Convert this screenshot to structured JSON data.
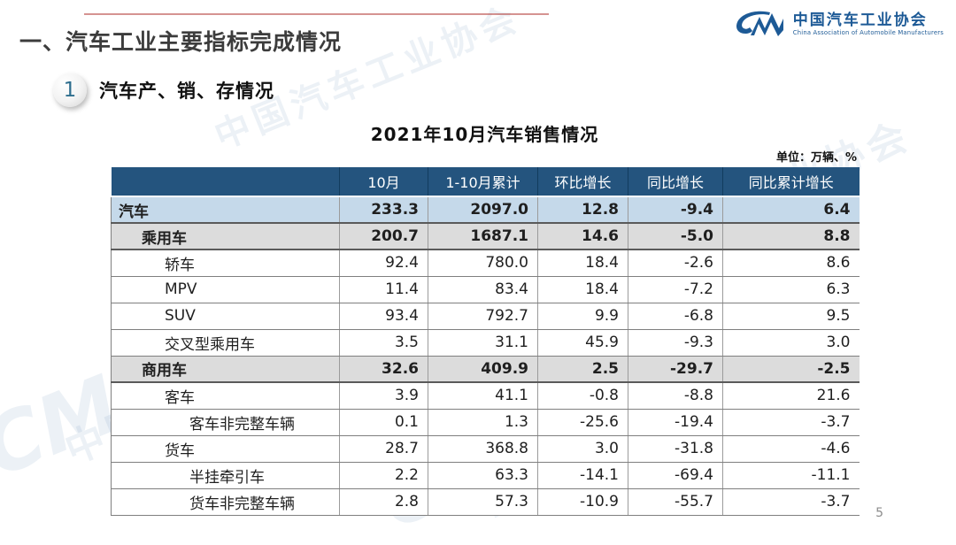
{
  "slide": {
    "section_title": "一、汽车工业主要指标完成情况",
    "badge_number": "1",
    "subsection_title": "汽车产、销、存情况",
    "page_number": "5"
  },
  "logo": {
    "name_zh": "中国汽车工业协会",
    "name_en": "China Association of Automobile Manufacturers",
    "brand_color": "#1d5a96"
  },
  "watermark_text": "中国汽车工业协会",
  "table": {
    "title": "2021年10月汽车销售情况",
    "unit_note": "单位：万辆、%",
    "columns": [
      "",
      "10月",
      "1-10月累计",
      "环比增长",
      "同比增长",
      "同比累计增长"
    ],
    "header_bg": "#24547e",
    "rows": [
      {
        "label": "汽车",
        "indent": 0,
        "style": "blue",
        "bold": true,
        "values": [
          "233.3",
          "2097.0",
          "12.8",
          "-9.4",
          "6.4"
        ]
      },
      {
        "label": "乘用车",
        "indent": 1,
        "style": "gray",
        "bold": true,
        "values": [
          "200.7",
          "1687.1",
          "14.6",
          "-5.0",
          "8.8"
        ]
      },
      {
        "label": "轿车",
        "indent": 2,
        "style": "",
        "bold": false,
        "values": [
          "92.4",
          "780.0",
          "18.4",
          "-2.6",
          "8.6"
        ]
      },
      {
        "label": "MPV",
        "indent": 2,
        "style": "",
        "bold": false,
        "values": [
          "11.4",
          "83.4",
          "18.4",
          "-7.2",
          "6.3"
        ]
      },
      {
        "label": "SUV",
        "indent": 2,
        "style": "",
        "bold": false,
        "values": [
          "93.4",
          "792.7",
          "9.9",
          "-6.8",
          "9.5"
        ]
      },
      {
        "label": "交叉型乘用车",
        "indent": 2,
        "style": "",
        "bold": false,
        "values": [
          "3.5",
          "31.1",
          "45.9",
          "-9.3",
          "3.0"
        ]
      },
      {
        "label": "商用车",
        "indent": 1,
        "style": "gray",
        "bold": true,
        "values": [
          "32.6",
          "409.9",
          "2.5",
          "-29.7",
          "-2.5"
        ]
      },
      {
        "label": "客车",
        "indent": 2,
        "style": "",
        "bold": false,
        "values": [
          "3.9",
          "41.1",
          "-0.8",
          "-8.8",
          "21.6"
        ]
      },
      {
        "label": "客车非完整车辆",
        "indent": 3,
        "style": "",
        "bold": false,
        "values": [
          "0.1",
          "1.3",
          "-25.6",
          "-19.4",
          "-3.7"
        ]
      },
      {
        "label": "货车",
        "indent": 2,
        "style": "",
        "bold": false,
        "values": [
          "28.7",
          "368.8",
          "3.0",
          "-31.8",
          "-4.6"
        ]
      },
      {
        "label": "半挂牵引车",
        "indent": 3,
        "style": "",
        "bold": false,
        "values": [
          "2.2",
          "63.3",
          "-14.1",
          "-69.4",
          "-11.1"
        ]
      },
      {
        "label": "货车非完整车辆",
        "indent": 3,
        "style": "",
        "bold": false,
        "values": [
          "2.8",
          "57.3",
          "-10.9",
          "-55.7",
          "-3.7"
        ]
      }
    ]
  }
}
